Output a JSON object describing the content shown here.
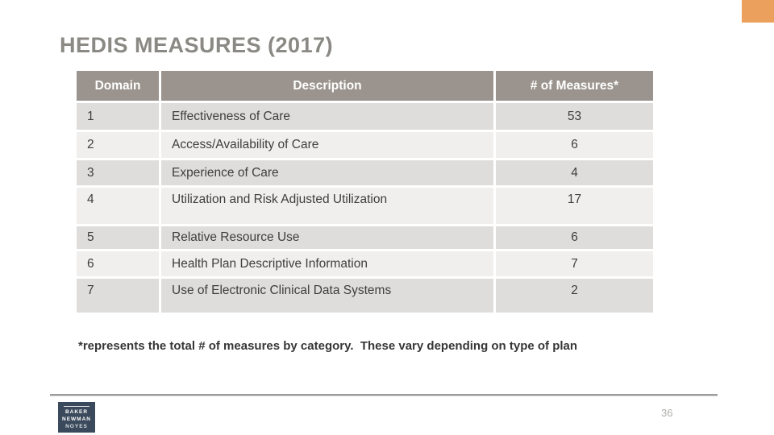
{
  "slide": {
    "title": "HEDIS MEASURES (2017)",
    "page_number": "36",
    "accent_color": "#EBA15D",
    "background_color": "#FFFFFF"
  },
  "table": {
    "columns": [
      "Domain",
      "Description",
      "# of Measures*"
    ],
    "header_bg": "#9B948E",
    "header_text_color": "#FFFFFF",
    "row_band_colors": [
      "#DFDDDC",
      "#F0EFEE"
    ],
    "rows": [
      {
        "domain": "1",
        "description": "Effectiveness of Care",
        "measures": "53"
      },
      {
        "domain": "2",
        "description": "Access/Availability of Care",
        "measures": "6"
      },
      {
        "domain": "3",
        "description": "Experience of Care",
        "measures": "4"
      },
      {
        "domain": "4",
        "description": "Utilization and Risk Adjusted Utilization",
        "measures": "17"
      },
      {
        "domain": "5",
        "description": "Relative Resource Use",
        "measures": "6"
      },
      {
        "domain": "6",
        "description": "Health Plan Descriptive Information",
        "measures": "7"
      },
      {
        "domain": "7",
        "description": "Use of Electronic Clinical Data Systems",
        "measures": "2"
      }
    ]
  },
  "footnote": "*represents the total # of measures by category.  These vary depending on type of plan",
  "logo": {
    "bg": "#3A4A5C",
    "lines": [
      "BAKER",
      "NEWMAN",
      "NOYES"
    ]
  }
}
